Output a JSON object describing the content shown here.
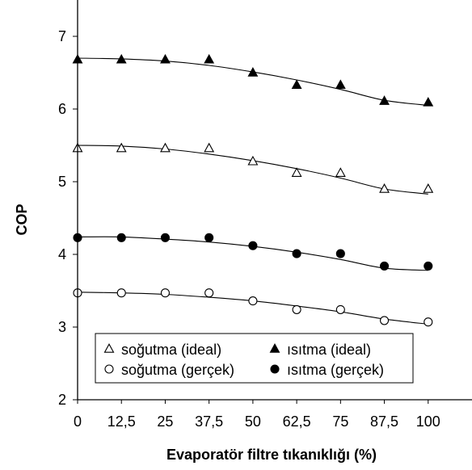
{
  "chart_data": {
    "type": "scatter",
    "title": "",
    "xlabel": "Evaporatör filtre tıkanıklığı (%)",
    "ylabel": "COP",
    "xlim": [
      0,
      112.5
    ],
    "ylim": [
      2,
      7.5
    ],
    "x_ticks": [
      0,
      12.5,
      25,
      37.5,
      50,
      62.5,
      75,
      87.5,
      100
    ],
    "x_tick_labels": [
      "0",
      "12,5",
      "25",
      "37,5",
      "50",
      "62,5",
      "75",
      "87,5",
      "100"
    ],
    "y_ticks": [
      2,
      3,
      4,
      5,
      6,
      7
    ],
    "y_tick_labels": [
      "2",
      "3",
      "4",
      "5",
      "6",
      "7"
    ],
    "grid": false,
    "legend_position": "bottom-center",
    "series": [
      {
        "name": "soğutma (ideal)",
        "marker": "open-triangle",
        "x": [
          0,
          12.5,
          25,
          37.5,
          50,
          62.5,
          75,
          87.5,
          100
        ],
        "values": [
          5.46,
          5.46,
          5.46,
          5.46,
          5.28,
          5.12,
          5.12,
          4.9,
          4.9
        ],
        "trend": [
          5.5,
          5.49,
          5.45,
          5.38,
          5.29,
          5.18,
          5.05,
          4.9,
          4.83
        ]
      },
      {
        "name": "ısıtma (ideal)",
        "marker": "filled-triangle",
        "x": [
          0,
          12.5,
          25,
          37.5,
          50,
          62.5,
          75,
          87.5,
          100
        ],
        "values": [
          6.68,
          6.68,
          6.68,
          6.68,
          6.5,
          6.33,
          6.33,
          6.11,
          6.09
        ],
        "trend": [
          6.7,
          6.69,
          6.66,
          6.6,
          6.51,
          6.4,
          6.27,
          6.12,
          6.05
        ]
      },
      {
        "name": "soğutma (gerçek)",
        "marker": "open-circle",
        "x": [
          0,
          12.5,
          25,
          37.5,
          50,
          62.5,
          75,
          87.5,
          100
        ],
        "values": [
          3.47,
          3.47,
          3.47,
          3.47,
          3.36,
          3.24,
          3.24,
          3.09,
          3.07
        ],
        "trend": [
          3.48,
          3.47,
          3.45,
          3.41,
          3.36,
          3.29,
          3.21,
          3.11,
          3.04
        ]
      },
      {
        "name": "ısıtma (gerçek)",
        "marker": "filled-circle",
        "x": [
          0,
          12.5,
          25,
          37.5,
          50,
          62.5,
          75,
          87.5,
          100
        ],
        "values": [
          4.23,
          4.23,
          4.23,
          4.23,
          4.12,
          4.01,
          4.01,
          3.84,
          3.84
        ],
        "trend": [
          4.24,
          4.24,
          4.21,
          4.17,
          4.11,
          4.03,
          3.93,
          3.81,
          3.78
        ]
      }
    ]
  }
}
